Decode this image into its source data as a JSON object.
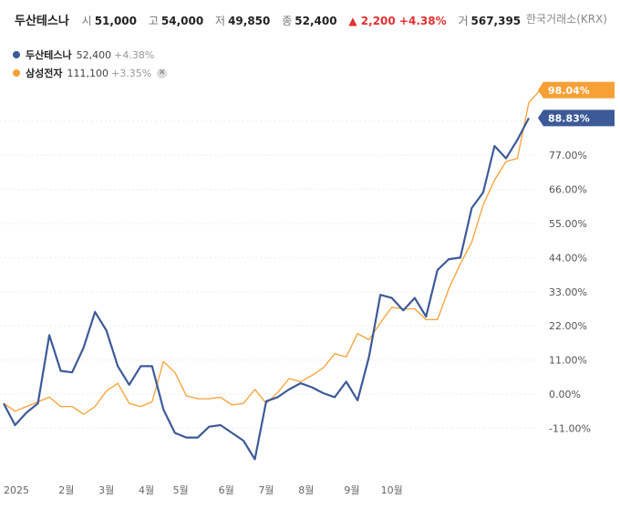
{
  "header": {
    "name": "두산테스나",
    "open_label": "시",
    "open": "51,000",
    "high_label": "고",
    "high": "54,000",
    "low_label": "저",
    "low": "49,850",
    "close_label": "종",
    "close": "52,400",
    "change": "▲ 2,200 +4.38%",
    "volume_label": "거",
    "volume": "567,395",
    "exchange": "한국거래소(KRX)"
  },
  "legend": [
    {
      "name": "두산테스나",
      "value": "52,400",
      "pct": "+4.38%",
      "color": "#3d5a98"
    },
    {
      "name": "삼성전자",
      "value": "111,100",
      "pct": "+3.35%",
      "color": "#f7a035",
      "remove_icon": "close-icon"
    }
  ],
  "chart_data": {
    "type": "line",
    "x_labels": [
      "2025",
      "2월",
      "3월",
      "4월",
      "5월",
      "6월",
      "7월",
      "8월",
      "9월",
      "10월"
    ],
    "x_label_index": [
      0,
      5.5,
      9,
      12.5,
      15.5,
      19.5,
      23,
      26.5,
      30.5,
      34
    ],
    "y_ticks": [
      "-11.00%",
      "0.00%",
      "11.00%",
      "22.00%",
      "33.00%",
      "44.00%",
      "55.00%",
      "66.00%",
      "77.00%",
      "88.00%"
    ],
    "y_tick_values": [
      -11,
      0,
      11,
      22,
      33,
      44,
      55,
      66,
      77,
      88
    ],
    "ylim": [
      -20,
      105
    ],
    "series": [
      {
        "name": "두산테스나",
        "color": "#3d5a98",
        "end_label": "88.83%",
        "values": [
          -3,
          -10,
          -6,
          -3,
          19,
          7.5,
          7,
          15,
          26.5,
          20.5,
          9,
          3,
          9,
          9,
          -5,
          -12.5,
          -14,
          -14,
          -10.5,
          -10,
          -12.5,
          -15,
          -21,
          -2.3,
          -1,
          1.5,
          3.5,
          2.2,
          0.3,
          -1,
          4,
          -2,
          12,
          32,
          31,
          27,
          31,
          25,
          40,
          43.5,
          44,
          60,
          65,
          80,
          76,
          82,
          89
        ]
      },
      {
        "name": "삼성전자",
        "color": "#f7a035",
        "end_label": "98.04%",
        "values": [
          -3,
          -5.5,
          -4,
          -2.5,
          -1,
          -4,
          -4,
          -6.5,
          -4,
          1,
          3.5,
          -3,
          -4,
          -2.5,
          10.5,
          7,
          -0.5,
          -1.5,
          -1.5,
          -1,
          -3.5,
          -3,
          1.5,
          -3,
          0.5,
          5,
          4,
          6,
          8.5,
          13,
          12,
          19.5,
          17.5,
          23,
          28,
          27.5,
          27.5,
          24,
          24,
          34,
          42,
          49,
          61,
          69,
          75,
          76,
          94,
          98
        ]
      }
    ]
  }
}
